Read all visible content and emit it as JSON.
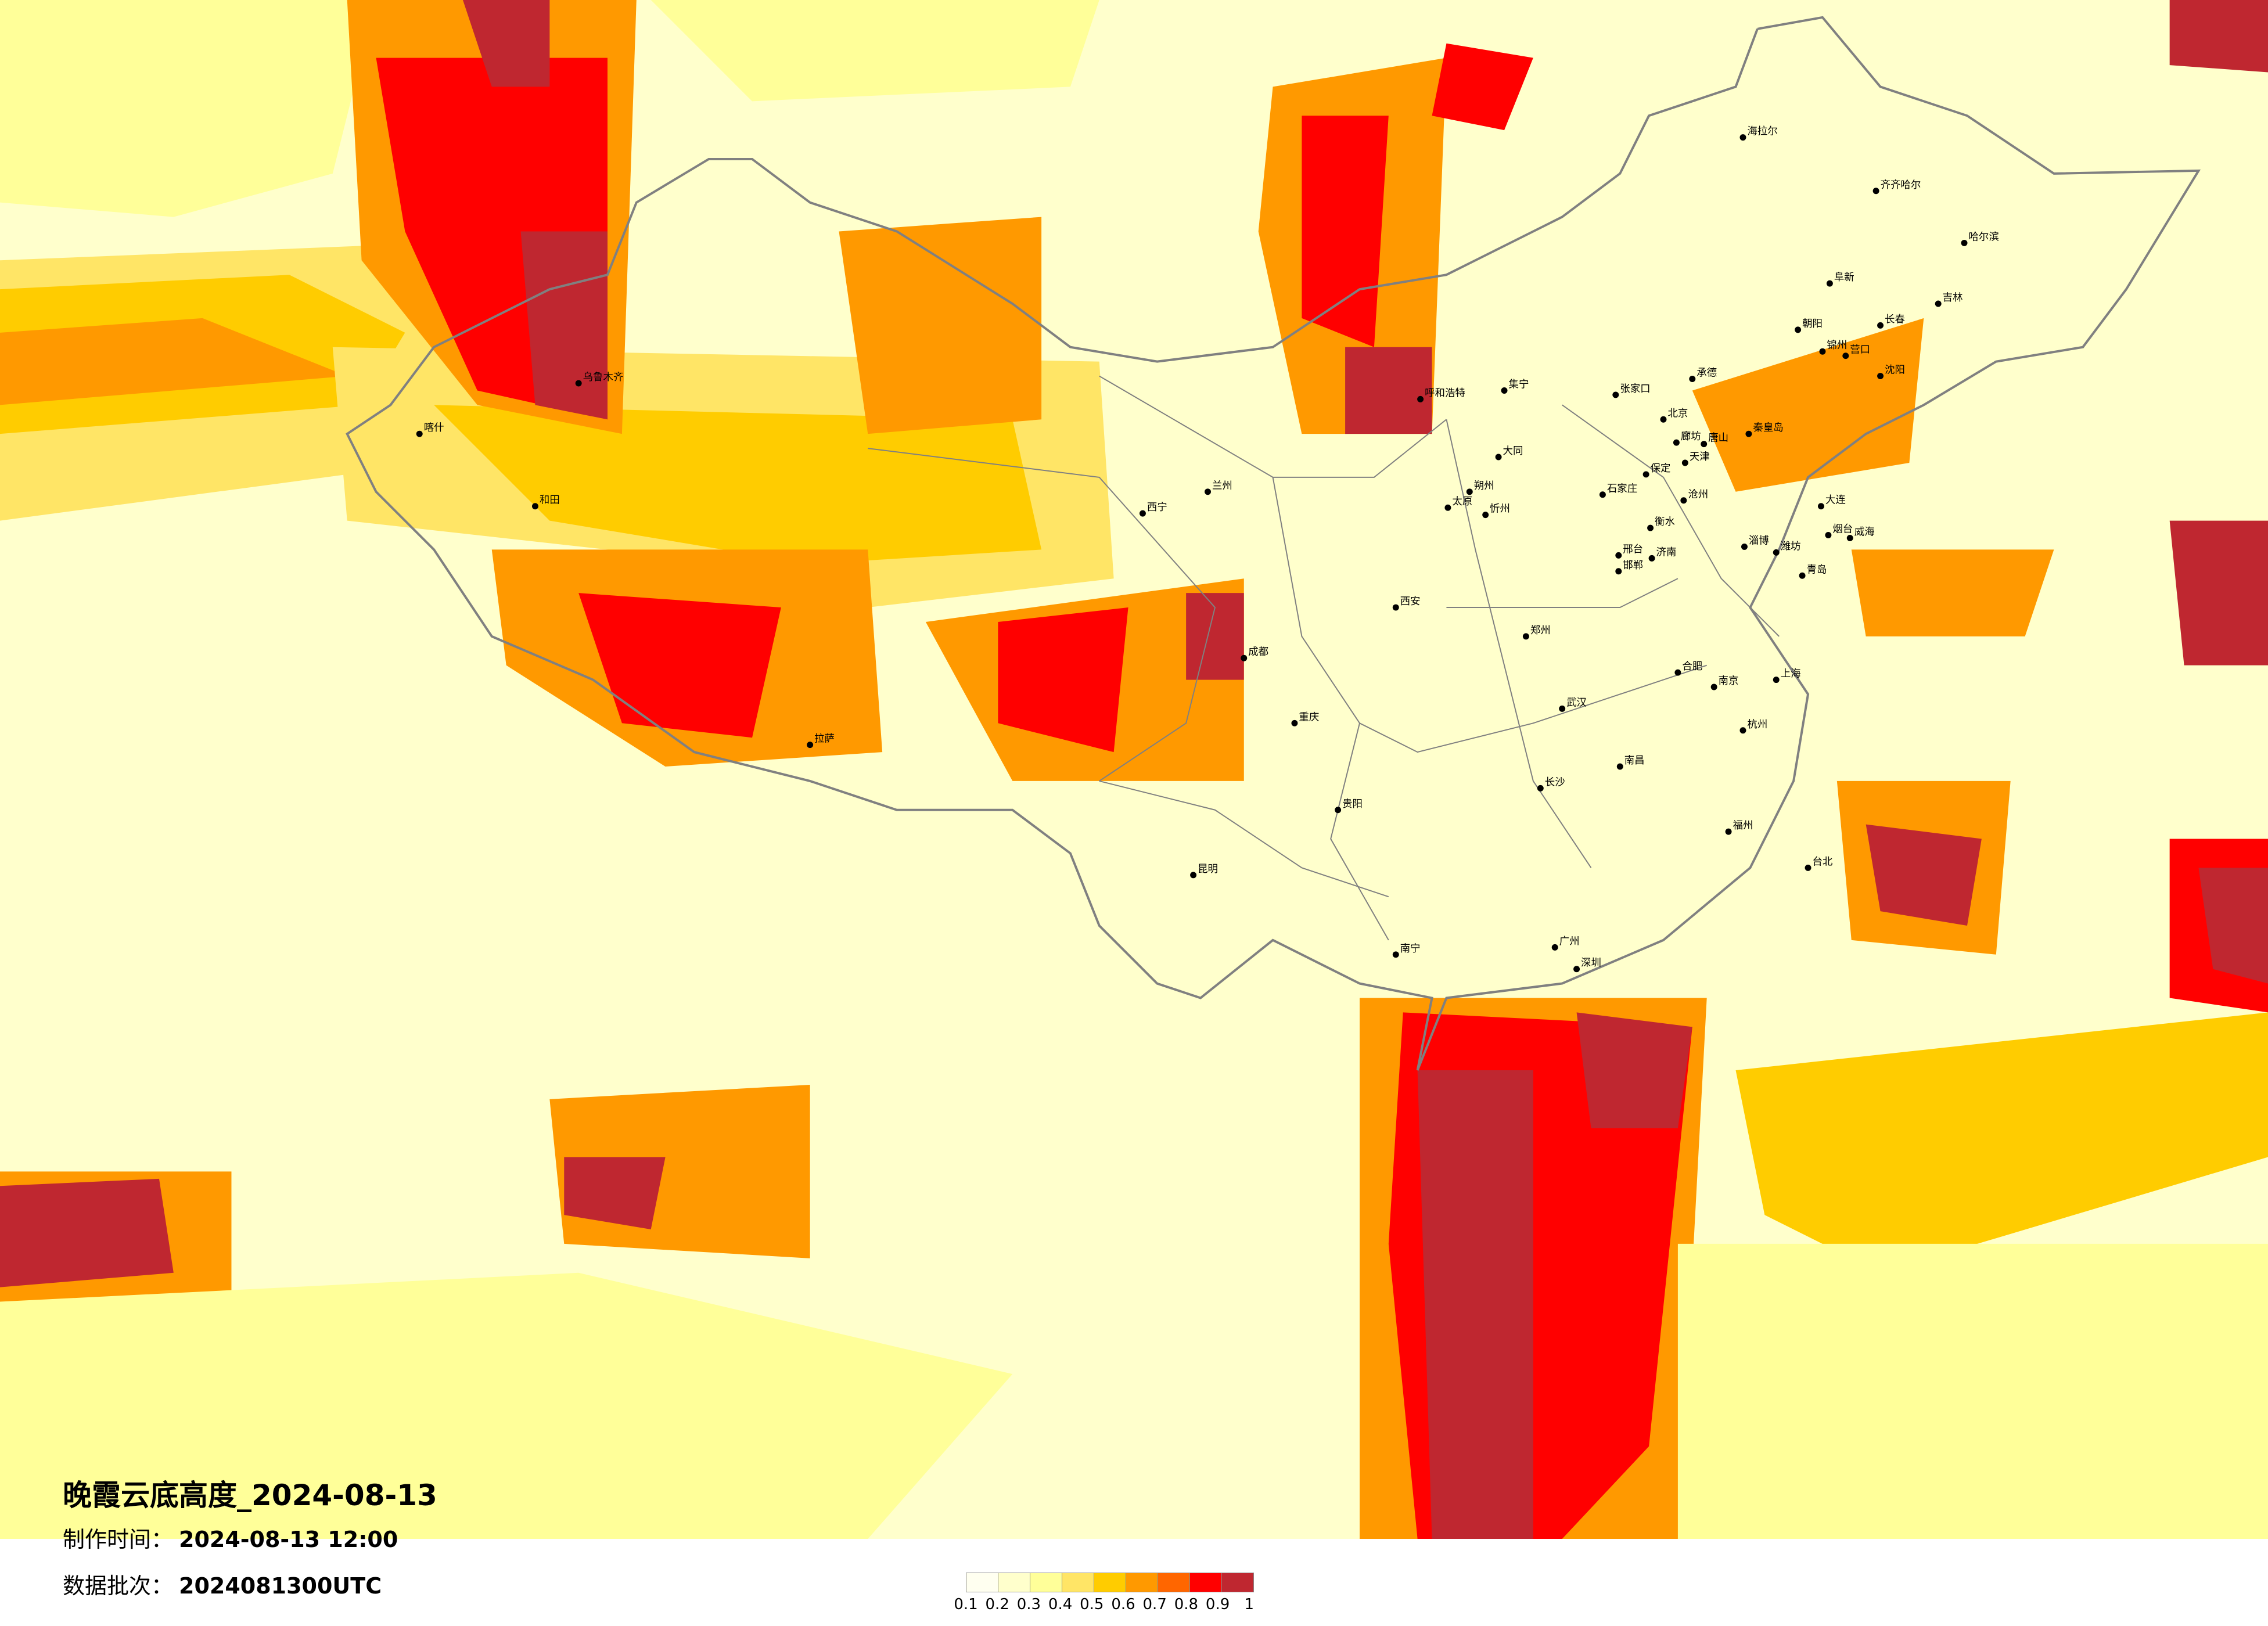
{
  "title": "晚霞云底高度_2024-08-13",
  "production_time": {
    "label": "制作时间：",
    "value": "2024-08-13 12:00"
  },
  "data_batch": {
    "label": "数据批次：",
    "value": "2024081300UTC"
  },
  "legend": {
    "ticks": [
      "0.1",
      "0.2",
      "0.3",
      "0.4",
      "0.5",
      "0.6",
      "0.7",
      "0.8",
      "0.9",
      "1"
    ],
    "colors": [
      "#fffff0",
      "#ffffcc",
      "#ffff99",
      "#ffe566",
      "#ffcc00",
      "#ff9900",
      "#ff6600",
      "#ff0000",
      "#bf2730"
    ]
  },
  "map": {
    "boundary_color": "#808080",
    "city_marker_color": "#000000",
    "cities": [
      "北京",
      "天津",
      "廊坊",
      "保定",
      "石家庄",
      "唐山",
      "承德",
      "张家口",
      "秦皇岛",
      "沧州",
      "衡水",
      "邢台",
      "邯郸",
      "太原",
      "大同",
      "朔州",
      "忻州",
      "呼和浩特",
      "集宁",
      "济南",
      "青岛",
      "烟台",
      "威海",
      "潍坊",
      "淄博",
      "大连",
      "锦州",
      "营口",
      "朝阳",
      "阜新",
      "哈尔滨",
      "齐齐哈尔",
      "长春",
      "吉林",
      "沈阳",
      "上海",
      "南京",
      "杭州",
      "广州",
      "深圳",
      "武汉",
      "长沙",
      "成都",
      "重庆",
      "昆明",
      "贵阳",
      "西安",
      "兰州",
      "西宁",
      "乌鲁木齐",
      "拉萨",
      "喀什",
      "和田",
      "南宁",
      "台北",
      "福州",
      "海拉尔",
      "郑州",
      "合肥",
      "南昌"
    ]
  }
}
